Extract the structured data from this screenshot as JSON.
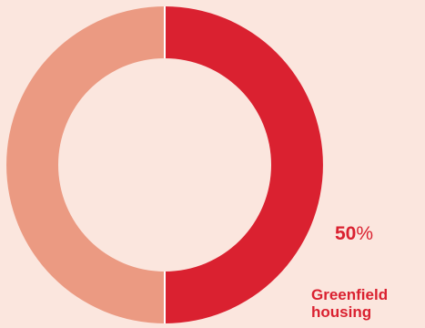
{
  "chart_data": {
    "type": "pie",
    "style": "donut",
    "slices": [
      {
        "label": "Greenfield\nhousing",
        "value": 50,
        "color": "#DA2130"
      },
      {
        "label": "",
        "value": 50,
        "color": "#EB9A82"
      }
    ],
    "data_label": {
      "value": "50",
      "unit": "%"
    },
    "category_label": "Greenfield\nhousing"
  },
  "colors": {
    "background": "#FBE6DE",
    "accent": "#DA2130",
    "secondary": "#EB9A82",
    "separator": "#FFFFFF"
  }
}
